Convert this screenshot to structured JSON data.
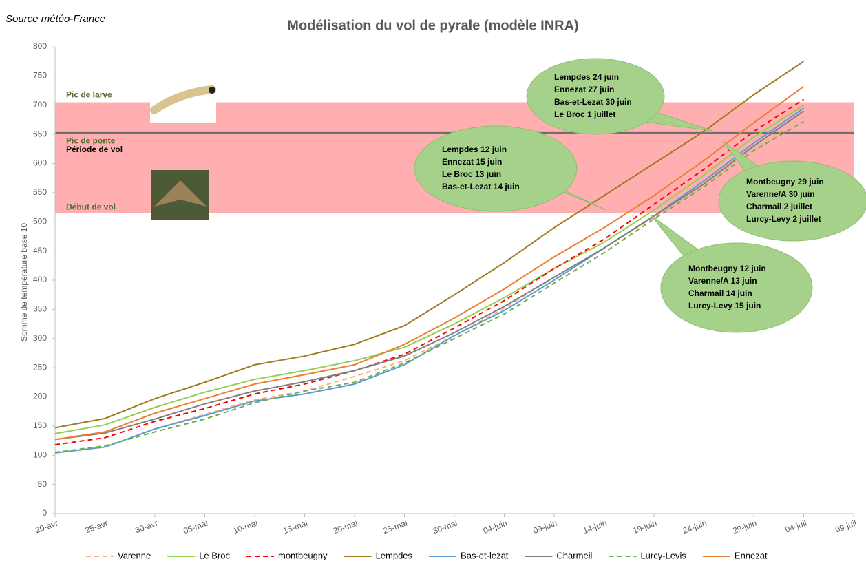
{
  "source": "Source météo-France",
  "chart_data": {
    "type": "line",
    "title": "Modélisation du vol de pyrale (modèle INRA)",
    "y_label": "Somme de température base 10",
    "categories": [
      "20-avr",
      "25-avr",
      "30-avr",
      "05-mai",
      "10-mai",
      "15-mai",
      "20-mai",
      "25-mai",
      "30-mai",
      "04-juin",
      "09-juin",
      "14-juin",
      "19-juin",
      "24-juin",
      "29-juin",
      "04-juil",
      "09-juil"
    ],
    "series": [
      {
        "name": "Varenne",
        "color": "#f4b183",
        "dashed": true,
        "values": [
          105,
          114,
          145,
          170,
          195,
          210,
          235,
          262,
          305,
          352,
          405,
          455,
          508,
          565,
          625,
          680,
          null
        ]
      },
      {
        "name": "Le Broc",
        "color": "#92d050",
        "dashed": false,
        "values": [
          137,
          152,
          182,
          208,
          230,
          245,
          262,
          285,
          325,
          370,
          420,
          465,
          520,
          580,
          645,
          700,
          null
        ]
      },
      {
        "name": "montbeugny",
        "color": "#ff0000",
        "dashed": true,
        "values": [
          118,
          130,
          158,
          180,
          205,
          222,
          245,
          273,
          318,
          365,
          420,
          470,
          530,
          590,
          655,
          710,
          null
        ]
      },
      {
        "name": "Lempdes",
        "color": "#a07a1e",
        "dashed": false,
        "values": [
          147,
          163,
          197,
          225,
          255,
          270,
          290,
          322,
          375,
          430,
          490,
          545,
          600,
          655,
          718,
          775,
          null
        ]
      },
      {
        "name": "Bas-et-lezat",
        "color": "#5b9bd5",
        "dashed": false,
        "values": [
          104,
          114,
          145,
          168,
          193,
          205,
          222,
          255,
          305,
          348,
          400,
          455,
          510,
          570,
          635,
          695,
          null
        ]
      },
      {
        "name": "Charmeil",
        "color": "#7f7f7f",
        "dashed": false,
        "values": [
          127,
          138,
          162,
          188,
          210,
          226,
          245,
          270,
          310,
          355,
          405,
          455,
          510,
          565,
          630,
          690,
          null
        ]
      },
      {
        "name": "Lurcy-Levis",
        "color": "#70ad47",
        "dashed": true,
        "values": [
          105,
          116,
          140,
          162,
          190,
          210,
          225,
          258,
          300,
          342,
          395,
          447,
          505,
          560,
          622,
          672,
          null
        ]
      },
      {
        "name": "Ennezat",
        "color": "#ed7d31",
        "dashed": false,
        "values": [
          127,
          140,
          172,
          197,
          222,
          238,
          255,
          290,
          335,
          385,
          440,
          490,
          545,
          605,
          670,
          732,
          null
        ]
      }
    ],
    "ylim": [
      0,
      800
    ],
    "yticks": [
      0,
      50,
      100,
      150,
      200,
      250,
      300,
      350,
      400,
      450,
      500,
      550,
      600,
      650,
      700,
      750,
      800
    ],
    "grid": false,
    "legend": "bottom",
    "flight_band": [
      515,
      705
    ],
    "ponte_line": 652,
    "zone_labels": [
      "Pic de larve",
      "Pic de ponte",
      "Période de vol",
      "Début de vol"
    ],
    "bubbles": [
      [
        "Lempdes 24 juin",
        "Ennezat  27 juin",
        "Bas-et-Lezat 30 juin",
        "Le Broc 1 juillet"
      ],
      [
        "Lempdes 12 juin",
        "Ennezat  15 juin",
        "Le Broc 13 juin",
        "Bas-et-Lezat 14 juin"
      ],
      [
        "Montbeugny 29 juin",
        "Varenne/A 30 juin",
        "Charmail 2 juillet",
        "Lurcy-Levy 2 juillet"
      ],
      [
        "Montbeugny 12 juin",
        "Varenne/A 13 juin",
        "Charmail 14 juin",
        "Lurcy-Levy 15 juin"
      ]
    ]
  }
}
